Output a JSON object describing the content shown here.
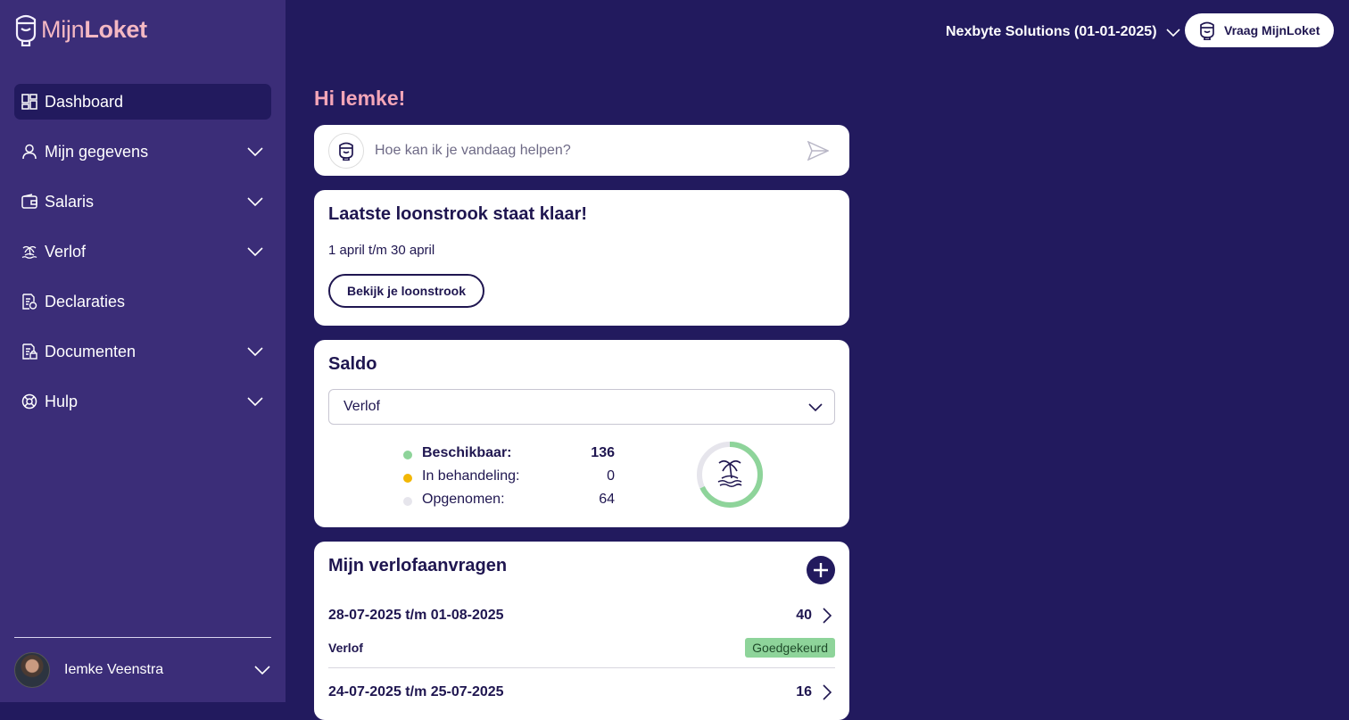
{
  "brand": {
    "part1": "Mijn",
    "part2": "Loket"
  },
  "sidebar": {
    "items": [
      {
        "label": "Dashboard",
        "icon": "dashboard-icon",
        "active": true
      },
      {
        "label": "Mijn gegevens",
        "icon": "user-icon",
        "expandable": true
      },
      {
        "label": "Salaris",
        "icon": "wallet-icon",
        "expandable": true
      },
      {
        "label": "Verlof",
        "icon": "palm-tree-icon",
        "expandable": true
      },
      {
        "label": "Declaraties",
        "icon": "receipt-icon",
        "expandable": false
      },
      {
        "label": "Documenten",
        "icon": "document-icon",
        "expandable": true
      },
      {
        "label": "Hulp",
        "icon": "lifebuoy-icon",
        "expandable": true
      }
    ],
    "user": {
      "name": "Iemke Veenstra"
    }
  },
  "header": {
    "company": "Nexbyte Solutions (01-01-2025)",
    "ask_button": "Vraag MijnLoket"
  },
  "greeting": "Hi Iemke!",
  "chat": {
    "placeholder": "Hoe kan ik je vandaag helpen?"
  },
  "payslip": {
    "title": "Laatste loonstrook staat klaar!",
    "period": "1 april t/m 30 april",
    "button": "Bekijk je loonstrook"
  },
  "saldo": {
    "title": "Saldo",
    "selected": "Verlof",
    "legend": [
      {
        "label": "Beschikbaar:",
        "value": "136",
        "color": "#8ed49a"
      },
      {
        "label": "In behandeling:",
        "value": "0",
        "color": "#f2b705"
      },
      {
        "label": "Opgenomen:",
        "value": "64",
        "color": "#e6e5ec"
      }
    ],
    "available_fraction": 0.68
  },
  "requests": {
    "title": "Mijn verlofaanvragen",
    "items": [
      {
        "dates": "28-07-2025 t/m 01-08-2025",
        "hours": "40",
        "type": "Verlof",
        "status": "Goedgekeurd"
      },
      {
        "dates": "24-07-2025 t/m 25-07-2025",
        "hours": "16"
      }
    ]
  }
}
